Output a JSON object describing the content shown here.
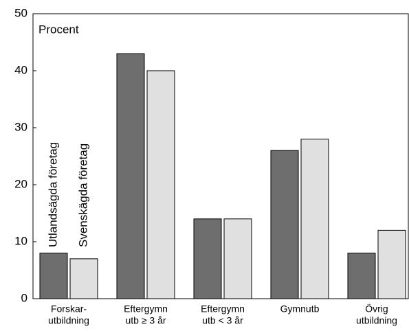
{
  "chart_data": {
    "type": "bar",
    "ylabel": "Procent",
    "categories": [
      [
        "Forskar-",
        "utbildning"
      ],
      [
        "Eftergymn",
        "utb ≥ 3 år"
      ],
      [
        "Eftergymn",
        "utb < 3 år"
      ],
      [
        "Gymnutb"
      ],
      [
        "Övrig",
        "utbildning"
      ]
    ],
    "series": [
      {
        "name": "Utlandsägda företag",
        "color": "#6e6e6e",
        "values": [
          8,
          43,
          14,
          26,
          8
        ]
      },
      {
        "name": "Svenskägda företag",
        "color": "#e0e0e0",
        "values": [
          7,
          40,
          14,
          28,
          12
        ]
      }
    ],
    "ylim": [
      0,
      50
    ],
    "yticks": [
      0,
      10,
      20,
      30,
      40,
      50
    ],
    "grid": false
  }
}
